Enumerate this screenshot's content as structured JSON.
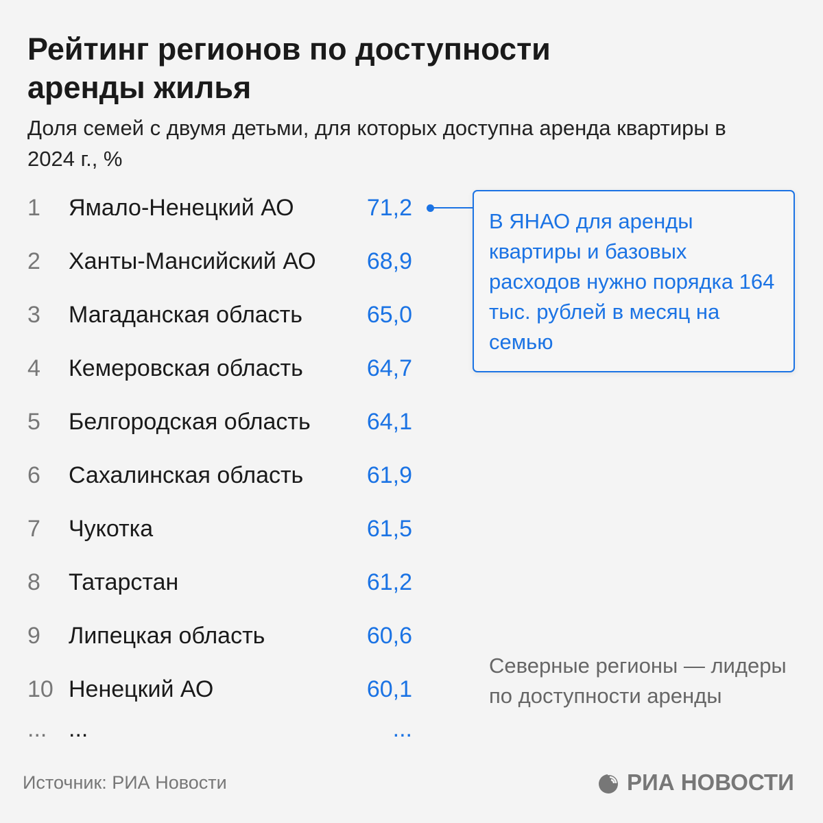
{
  "title": "Рейтинг регионов по доступности аренды жилья",
  "subtitle": "Доля семей с двумя детьми, для которых доступна аренда квартиры в 2024 г., %",
  "chart_data": {
    "type": "table",
    "title": "Рейтинг регионов по доступности аренды жилья",
    "unit": "%",
    "rows": [
      {
        "rank": "1",
        "region": "Ямало-Ненецкий АО",
        "value": "71,2"
      },
      {
        "rank": "2",
        "region": "Ханты-Мансийский АО",
        "value": "68,9"
      },
      {
        "rank": "3",
        "region": "Магаданская область",
        "value": "65,0"
      },
      {
        "rank": "4",
        "region": "Кемеровская область",
        "value": "64,7"
      },
      {
        "rank": "5",
        "region": "Белгородская область",
        "value": "64,1"
      },
      {
        "rank": "6",
        "region": "Сахалинская область",
        "value": "61,9"
      },
      {
        "rank": "7",
        "region": "Чукотка",
        "value": "61,5"
      },
      {
        "rank": "8",
        "region": "Татарстан",
        "value": "61,2"
      },
      {
        "rank": "9",
        "region": "Липецкая область",
        "value": "60,6"
      },
      {
        "rank": "10",
        "region": "Ненецкий АО",
        "value": "60,1"
      },
      {
        "rank": "...",
        "region": "...",
        "value": "..."
      }
    ]
  },
  "callout": "В ЯНАО для аренды квартиры и базовых расходов нужно порядка 164 тыс. рублей в месяц на семью",
  "note": "Северные регионы — лидеры по доступности аренды",
  "source": "Источник: РИА Новости",
  "logo_text": "РИА НОВОСТИ",
  "colors": {
    "accent": "#1b73e4",
    "background": "#f4f4f4"
  }
}
